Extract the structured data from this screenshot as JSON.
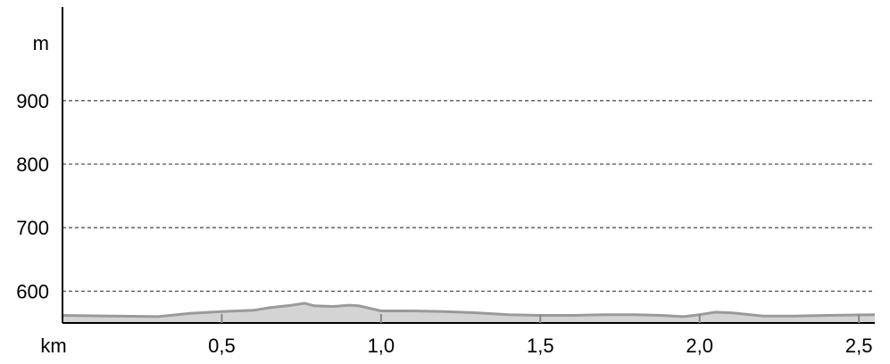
{
  "chart_data": {
    "type": "area",
    "title": "",
    "xlabel": "km",
    "ylabel": "m",
    "xlim": [
      0,
      2.55
    ],
    "ylim": [
      550,
      1000
    ],
    "x_ticks": [
      0.5,
      1.0,
      1.5,
      2.0,
      2.5
    ],
    "x_tick_labels": [
      "0,5",
      "1,0",
      "1,5",
      "2,0",
      "2,5"
    ],
    "y_ticks": [
      600,
      700,
      800,
      900
    ],
    "y_tick_labels": [
      "600",
      "700",
      "800",
      "900"
    ],
    "grid": "horizontal dashed",
    "series": [
      {
        "x": [
          0,
          0.15,
          0.3,
          0.4,
          0.5,
          0.6,
          0.65,
          0.72,
          0.76,
          0.79,
          0.85,
          0.9,
          0.93,
          1.0,
          1.1,
          1.2,
          1.3,
          1.4,
          1.5,
          1.6,
          1.7,
          1.8,
          1.88,
          1.95,
          2.0,
          2.05,
          2.1,
          2.2,
          2.3,
          2.4,
          2.55
        ],
        "values": [
          562,
          561,
          560,
          565,
          568,
          570,
          574,
          578,
          581,
          577,
          576,
          578,
          577,
          569,
          569,
          568,
          566,
          563,
          562,
          562,
          563,
          563,
          562,
          560,
          563,
          567,
          566,
          561,
          561,
          562,
          563
        ]
      }
    ]
  },
  "colors": {
    "fill": "#d4d4d4",
    "line": "#9a9a9a",
    "grid": "#555555",
    "axis": "#000000"
  }
}
